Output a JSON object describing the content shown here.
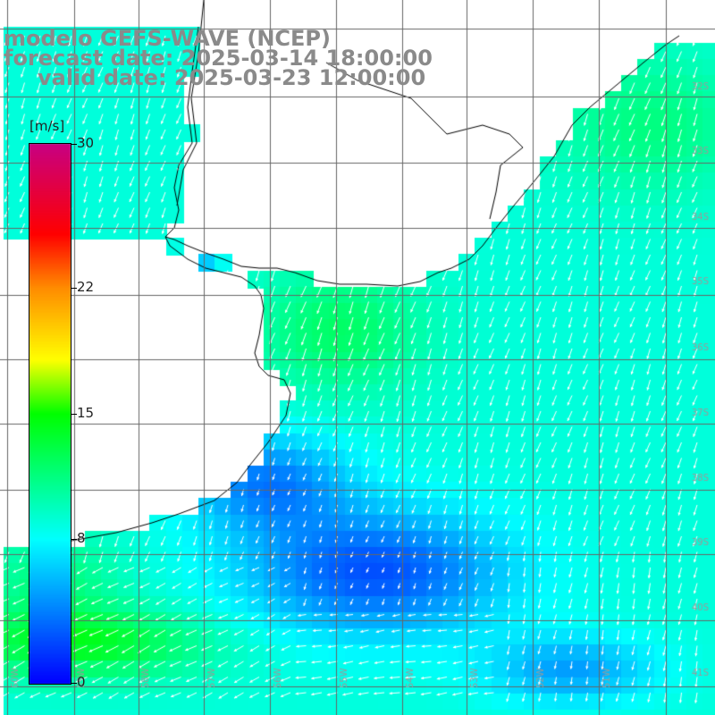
{
  "title": {
    "model": "modelo GEFS-WAVE (NCEP)",
    "forecast": "forecast date: 2025-03-14 18:00:00",
    "valid": "valid date: 2025-03-23 12:00:00"
  },
  "colorbar": {
    "unit": "[m/s]",
    "ticks": [
      {
        "label": "30",
        "value": 30
      },
      {
        "label": "22",
        "value": 22
      },
      {
        "label": "15",
        "value": 15
      },
      {
        "label": "8",
        "value": 8
      },
      {
        "label": "0",
        "value": 0
      }
    ],
    "min": 0,
    "max": 30
  },
  "lat_labels": [
    "32S",
    "33S",
    "34S",
    "35S",
    "36S",
    "37S",
    "38S",
    "39S",
    "40S",
    "41S"
  ],
  "lon_labels": [
    "60W",
    "59W",
    "58W",
    "57W",
    "56W",
    "55W",
    "54W",
    "53W",
    "52W",
    "51W"
  ],
  "colors": {
    "land": "#ffffff",
    "coast": "#000000",
    "grid": "#666666",
    "title": "#8a8a8a",
    "arrow": "#ffffff"
  }
}
